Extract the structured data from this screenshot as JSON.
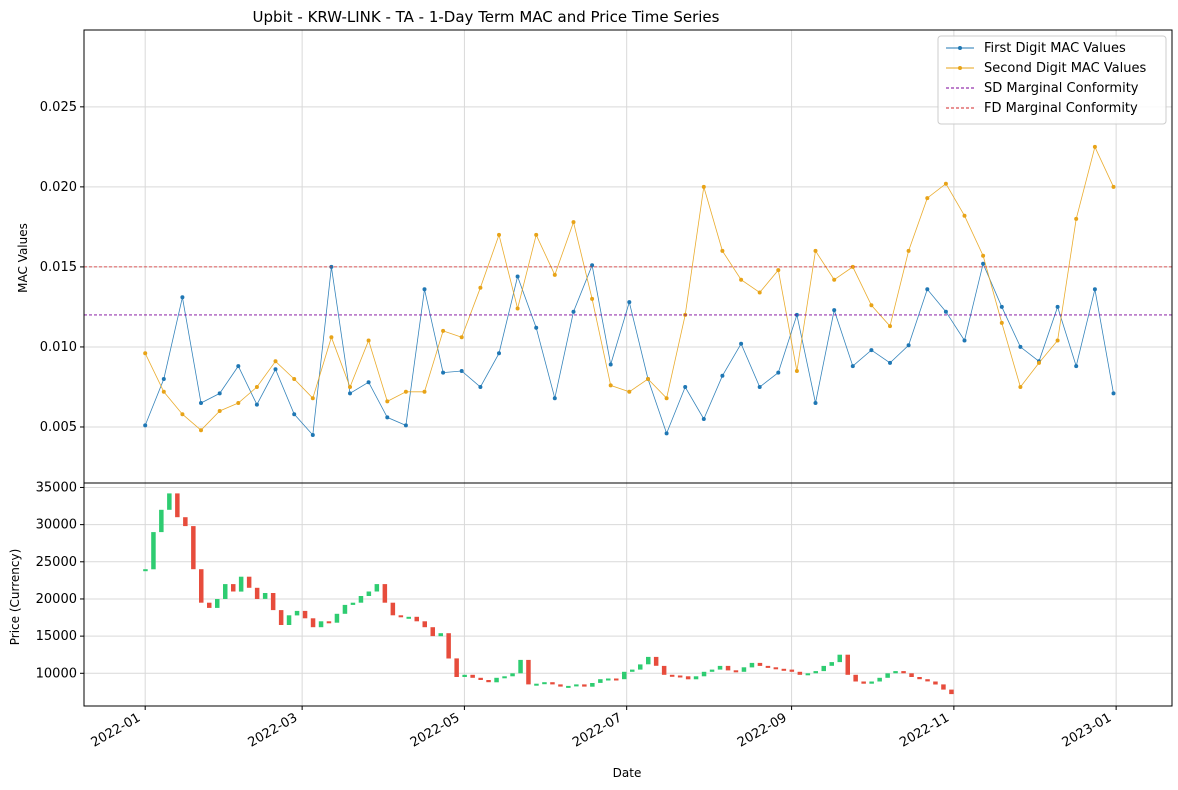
{
  "chart_data": [
    {
      "type": "line",
      "panel": "top",
      "title": "Upbit - KRW-LINK - TA - 1-Day Term MAC and Price Time Series",
      "ylabel": "MAC Values",
      "ylim": [
        0.0015,
        0.0298
      ],
      "yticks": [
        "0.005",
        "0.010",
        "0.015",
        "0.020",
        "0.025"
      ],
      "grid": true,
      "legend_position": "top-right",
      "x_range": [
        "2021-12-09",
        "2023-01-22"
      ],
      "series_sampling": "weekly (every 7 days)",
      "series": [
        {
          "name": "First Digit MAC Values",
          "color": "#1f77b4",
          "marker": "circle",
          "x_start": "2022-01-01",
          "step_days": 7,
          "values": [
            0.0051,
            0.008,
            0.0131,
            0.0065,
            0.0071,
            0.0088,
            0.0064,
            0.0086,
            0.0058,
            0.0045,
            0.015,
            0.0071,
            0.0078,
            0.0056,
            0.0051,
            0.0136,
            0.0084,
            0.0085,
            0.0075,
            0.0096,
            0.0144,
            0.0112,
            0.0068,
            0.0122,
            0.0151,
            0.0089,
            0.0128,
            0.008,
            0.0046,
            0.0075,
            0.0055,
            0.0082,
            0.0102,
            0.0075,
            0.0084,
            0.012,
            0.0065,
            0.0123,
            0.0088,
            0.0098,
            0.009,
            0.0101,
            0.0136,
            0.0122,
            0.0104,
            0.0152,
            0.0125,
            0.01,
            0.0091,
            0.0125,
            0.0088,
            0.0136,
            0.0071
          ]
        },
        {
          "name": "Second Digit MAC Values",
          "color": "#e8a317",
          "marker": "circle",
          "x_start": "2022-01-01",
          "step_days": 7,
          "values": [
            0.0096,
            0.0072,
            0.0058,
            0.0048,
            0.006,
            0.0065,
            0.0075,
            0.0091,
            0.008,
            0.0068,
            0.0106,
            0.0075,
            0.0104,
            0.0066,
            0.0072,
            0.0072,
            0.011,
            0.0106,
            0.0137,
            0.017,
            0.0124,
            0.017,
            0.0145,
            0.0178,
            0.013,
            0.0076,
            0.0072,
            0.008,
            0.0068,
            0.012,
            0.02,
            0.016,
            0.0142,
            0.0134,
            0.0148,
            0.0085,
            0.016,
            0.0142,
            0.015,
            0.0126,
            0.0113,
            0.016,
            0.0193,
            0.0202,
            0.0182,
            0.0157,
            0.0115,
            0.0075,
            0.009,
            0.0104,
            0.018,
            0.0225,
            0.02
          ]
        },
        {
          "name": "SD Marginal Conformity",
          "color": "#7b0099",
          "style": "dashed",
          "value": 0.012
        },
        {
          "name": "FD Marginal Conformity",
          "color": "#d62728",
          "style": "dashed",
          "value": 0.015
        }
      ]
    },
    {
      "type": "candlestick",
      "panel": "bottom",
      "xlabel": "Date",
      "ylabel": "Price (Currency)",
      "ylim": [
        5600,
        35600
      ],
      "yticks": [
        "10000",
        "15000",
        "20000",
        "25000",
        "30000",
        "35000"
      ],
      "xticks": [
        "2022-01",
        "2022-03",
        "2022-05",
        "2022-07",
        "2022-09",
        "2022-11",
        "2023-01"
      ],
      "grid": true,
      "up_color": "#2ecc71",
      "down_color": "#e74c3c",
      "x_start": "2022-01-01",
      "step_days": 3,
      "close_values": [
        24000,
        29000,
        32000,
        34200,
        31000,
        29800,
        24000,
        19500,
        18800,
        20000,
        22000,
        21000,
        23000,
        21500,
        20000,
        20800,
        18500,
        16500,
        17800,
        18400,
        17400,
        16200,
        17000,
        16800,
        18000,
        19200,
        19500,
        20400,
        21000,
        22000,
        19500,
        17800,
        17600,
        17600,
        17000,
        16200,
        15000,
        15400,
        12000,
        9500,
        9800,
        9400,
        9100,
        8800,
        9400,
        9600,
        10000,
        11800,
        8500,
        8600,
        8800,
        8500,
        8200,
        8300,
        8500,
        8200,
        8700,
        9200,
        9300,
        9200,
        10200,
        10500,
        11200,
        12200,
        11000,
        9800,
        9700,
        9600,
        9200,
        9600,
        10200,
        10500,
        11000,
        10400,
        10200,
        10800,
        11400,
        11000,
        10800,
        10600,
        10500,
        10200,
        9800,
        10000,
        10300,
        11000,
        11500,
        12500,
        9800,
        8900,
        8600,
        8900,
        9400,
        10000,
        10300,
        10000,
        9500,
        9200,
        8900,
        8500,
        7800,
        7200
      ]
    }
  ]
}
